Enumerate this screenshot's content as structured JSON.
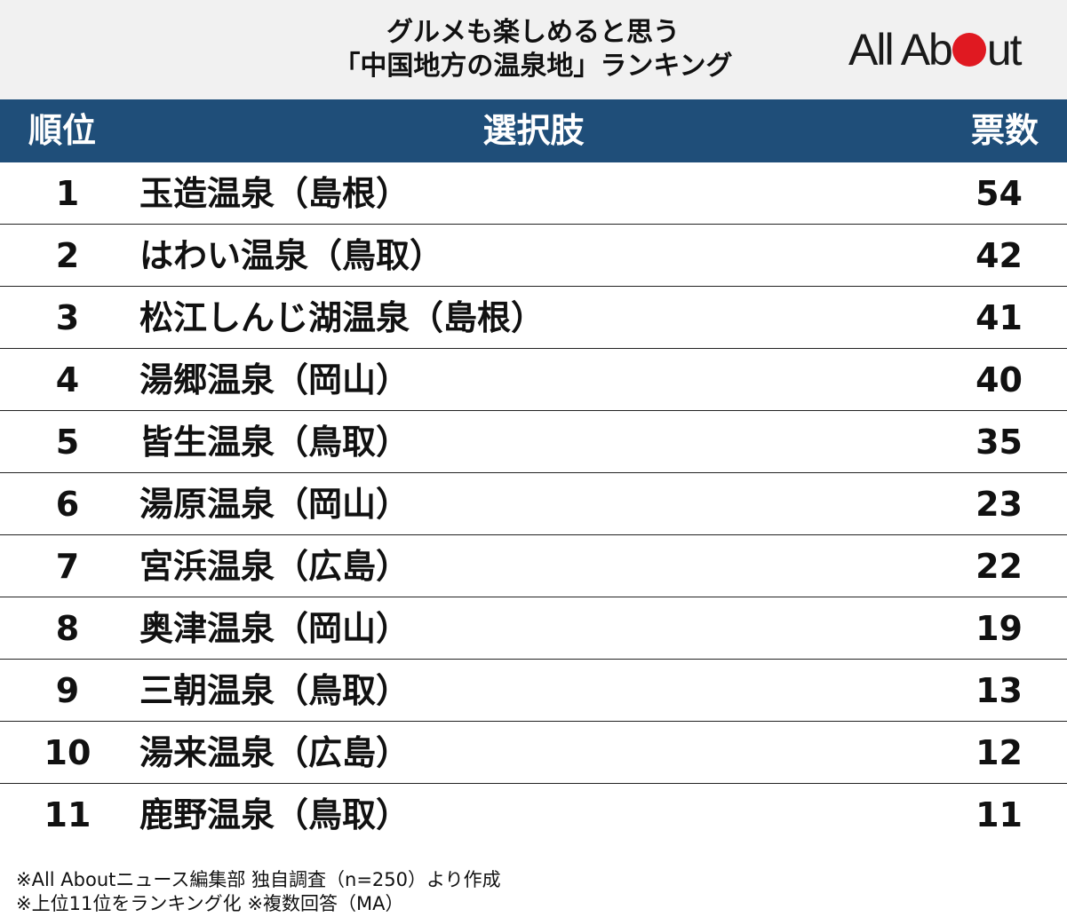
{
  "header": {
    "title_line1": "グルメも楽しめると思う",
    "title_line2": "「中国地方の温泉地」ランキング",
    "logo_text_left": "All Ab",
    "logo_text_right": "ut"
  },
  "table": {
    "col_rank": "順位",
    "col_choice": "選択肢",
    "col_votes": "票数"
  },
  "chart_data": {
    "type": "table",
    "title": "グルメも楽しめると思う「中国地方の温泉地」ランキング",
    "columns": [
      "順位",
      "選択肢",
      "票数"
    ],
    "rows": [
      {
        "rank": "1",
        "name": "玉造温泉（島根）",
        "votes": "54"
      },
      {
        "rank": "2",
        "name": "はわい温泉（鳥取）",
        "votes": "42"
      },
      {
        "rank": "3",
        "name": "松江しんじ湖温泉（島根）",
        "votes": "41"
      },
      {
        "rank": "4",
        "name": "湯郷温泉（岡山）",
        "votes": "40"
      },
      {
        "rank": "5",
        "name": "皆生温泉（鳥取）",
        "votes": "35"
      },
      {
        "rank": "6",
        "name": "湯原温泉（岡山）",
        "votes": "23"
      },
      {
        "rank": "7",
        "name": "宮浜温泉（広島）",
        "votes": "22"
      },
      {
        "rank": "8",
        "name": "奥津温泉（岡山）",
        "votes": "19"
      },
      {
        "rank": "9",
        "name": "三朝温泉（鳥取）",
        "votes": "13"
      },
      {
        "rank": "10",
        "name": "湯来温泉（広島）",
        "votes": "12"
      },
      {
        "rank": "11",
        "name": "鹿野温泉（鳥取）",
        "votes": "11"
      }
    ]
  },
  "footer": {
    "note1": "※All Aboutニュース編集部 独自調査（n=250）より作成",
    "note2": "※上位11位をランキング化 ※複数回答（MA）"
  },
  "colors": {
    "header_bg": "#1f4e79",
    "logo_red": "#e01921"
  }
}
